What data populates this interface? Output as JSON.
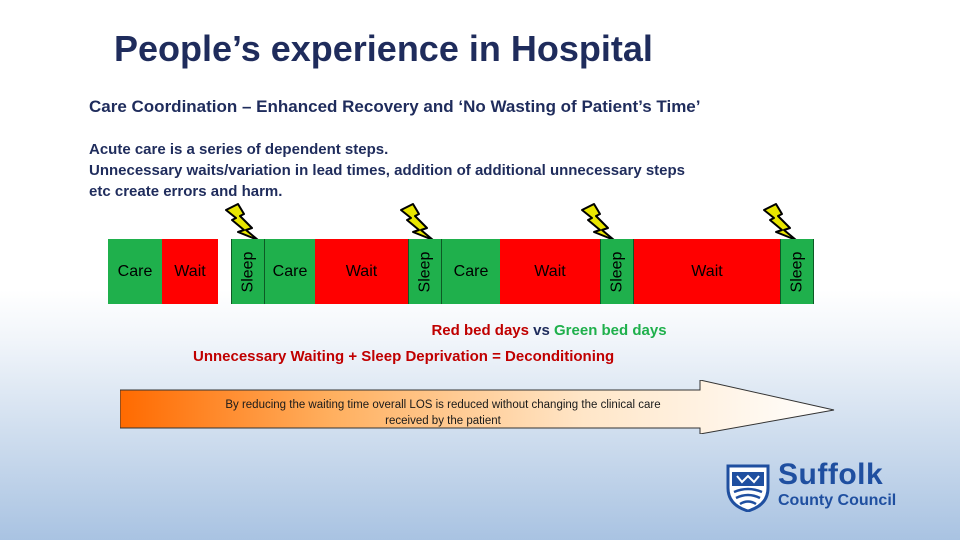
{
  "title": "People’s experience in Hospital",
  "subtitle": "Care Coordination – Enhanced Recovery and ‘No Wasting of Patient’s Time’",
  "intro": {
    "line1": "Acute care is a series of dependent steps.",
    "line2": "Unnecessary waits/variation in lead times, addition of additional unnecessary steps",
    "line3": "etc create errors and harm."
  },
  "timeline": [
    {
      "label": "Care",
      "kind": "care"
    },
    {
      "label": "Wait",
      "kind": "wait"
    },
    {
      "label": "Sleep",
      "kind": "sleep"
    },
    {
      "label": "Care",
      "kind": "care"
    },
    {
      "label": "Wait",
      "kind": "wait"
    },
    {
      "label": "Sleep",
      "kind": "sleep"
    },
    {
      "label": "Care",
      "kind": "care"
    },
    {
      "label": "Wait",
      "kind": "wait"
    },
    {
      "label": "Sleep",
      "kind": "sleep"
    },
    {
      "label": "Wait",
      "kind": "wait"
    },
    {
      "label": "Sleep",
      "kind": "sleep"
    }
  ],
  "legend": {
    "red": "Red bed days",
    "vs": " vs ",
    "green": "Green bed days",
    "equation": "Unnecessary Waiting + Sleep Deprivation = Deconditioning"
  },
  "arrow_text": {
    "line1": "By reducing the waiting time overall LOS is reduced without changing the clinical care",
    "line2": "received by the patient"
  },
  "logo": {
    "name": "Suffolk",
    "sub": "County Council"
  },
  "colors": {
    "care": "#1fb04c",
    "wait": "#ff0000",
    "bolt": "#e8e500",
    "brand": "#1f4fa0"
  }
}
